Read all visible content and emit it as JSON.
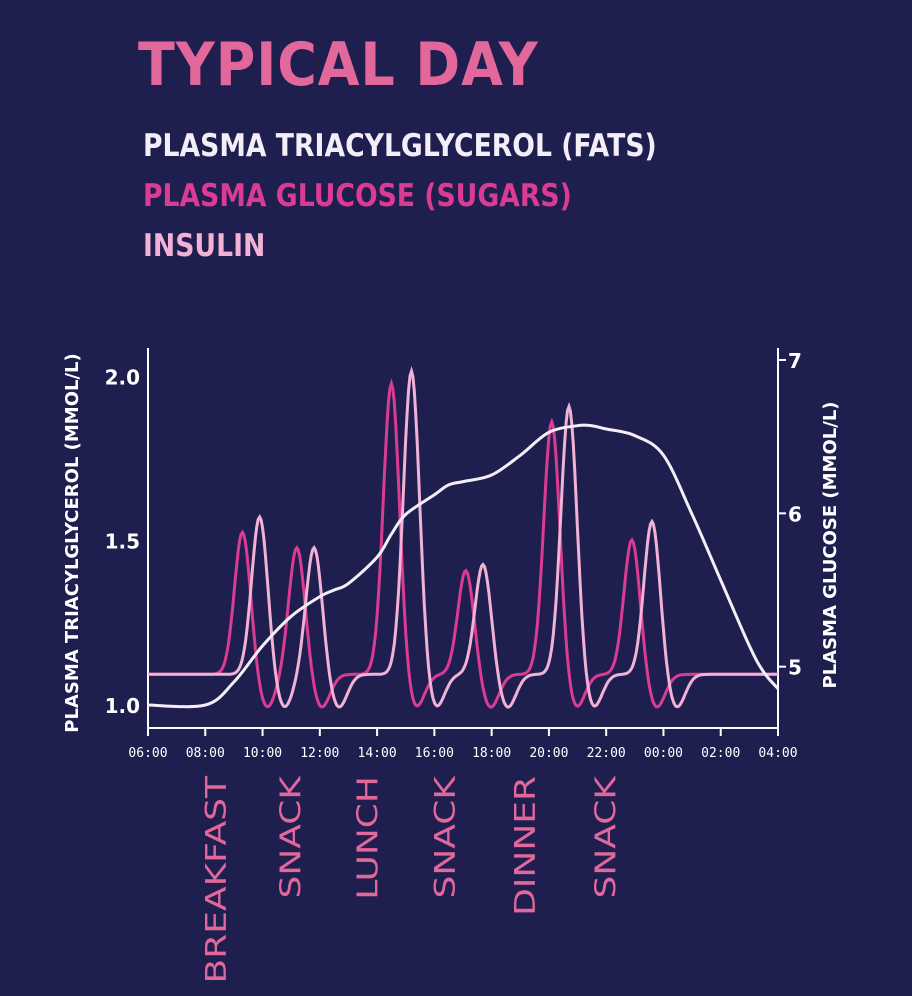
{
  "colors": {
    "background": "#1f1f4f",
    "title": "#e2679b",
    "fats": "#f3eef8",
    "glucose": "#da3c93",
    "insulin": "#f1b2d6",
    "axis": "#ffffff",
    "meal_label": "#e2679b"
  },
  "chart_data": {
    "type": "line",
    "title": "TYPICAL DAY",
    "legend": [
      "PLASMA TRIACYLGLYCEROL (FATS)",
      "PLASMA GLUCOSE (SUGARS)",
      "INSULIN"
    ],
    "legend_placement": "top",
    "ylabel_left": "PLASMA TRIACYLGLYCEROL (MMOL/L)",
    "ylabel_right": "PLASMA GLUCOSE (MMOL/L)",
    "x_ticks": [
      "06:00",
      "08:00",
      "10:00",
      "12:00",
      "14:00",
      "16:00",
      "18:00",
      "20:00",
      "22:00",
      "00:00",
      "02:00",
      "04:00"
    ],
    "x_hours": [
      0,
      2,
      4,
      6,
      8,
      10,
      12,
      14,
      16,
      18,
      20,
      22
    ],
    "x_range_hours": [
      0,
      22
    ],
    "y_left": {
      "ticks": [
        "1.0",
        "1.5",
        "2.0"
      ],
      "tick_values": [
        1.0,
        1.5,
        2.0
      ],
      "range": [
        0.93,
        2.05
      ]
    },
    "y_right": {
      "ticks": [
        "5",
        "6",
        "7"
      ],
      "tick_values": [
        5,
        6,
        7
      ],
      "range": [
        4.6,
        7.0
      ]
    },
    "grid": false,
    "meals": [
      {
        "label": "BREAKFAST",
        "hour": 2.3
      },
      {
        "label": "SNACK",
        "hour": 4.9
      },
      {
        "label": "LUNCH",
        "hour": 7.6
      },
      {
        "label": "SNACK",
        "hour": 10.3
      },
      {
        "label": "DINNER",
        "hour": 13.1
      },
      {
        "label": "SNACK",
        "hour": 15.9
      }
    ],
    "series": [
      {
        "name": "PLASMA TRIACYLGLYCEROL (FATS)",
        "axis": "left",
        "x": [
          0,
          2,
          3,
          4,
          5,
          6,
          6.5,
          7,
          8,
          8.5,
          9,
          10,
          10.5,
          11,
          12,
          13,
          14,
          15,
          15.5,
          16,
          17,
          18,
          19,
          20,
          21,
          21.5,
          22
        ],
        "y": [
          1.0,
          1.0,
          1.07,
          1.18,
          1.27,
          1.33,
          1.35,
          1.37,
          1.45,
          1.52,
          1.58,
          1.64,
          1.67,
          1.68,
          1.7,
          1.76,
          1.83,
          1.85,
          1.85,
          1.84,
          1.82,
          1.76,
          1.58,
          1.38,
          1.18,
          1.1,
          1.05
        ]
      },
      {
        "name": "PLASMA GLUCOSE (SUGARS)",
        "axis": "right",
        "baseline": 4.95,
        "peaks": [
          {
            "hour": 3.3,
            "value": 5.88
          },
          {
            "hour": 5.2,
            "value": 5.78
          },
          {
            "hour": 8.5,
            "value": 6.85
          },
          {
            "hour": 11.1,
            "value": 5.63
          },
          {
            "hour": 14.1,
            "value": 6.6
          },
          {
            "hour": 16.9,
            "value": 5.83
          }
        ]
      },
      {
        "name": "INSULIN",
        "axis": "right",
        "baseline": 4.95,
        "peaks": [
          {
            "hour": 3.9,
            "value": 5.98
          },
          {
            "hour": 5.8,
            "value": 5.78
          },
          {
            "hour": 9.2,
            "value": 6.93
          },
          {
            "hour": 11.7,
            "value": 5.67
          },
          {
            "hour": 14.7,
            "value": 6.7
          },
          {
            "hour": 17.6,
            "value": 5.95
          }
        ]
      }
    ]
  }
}
